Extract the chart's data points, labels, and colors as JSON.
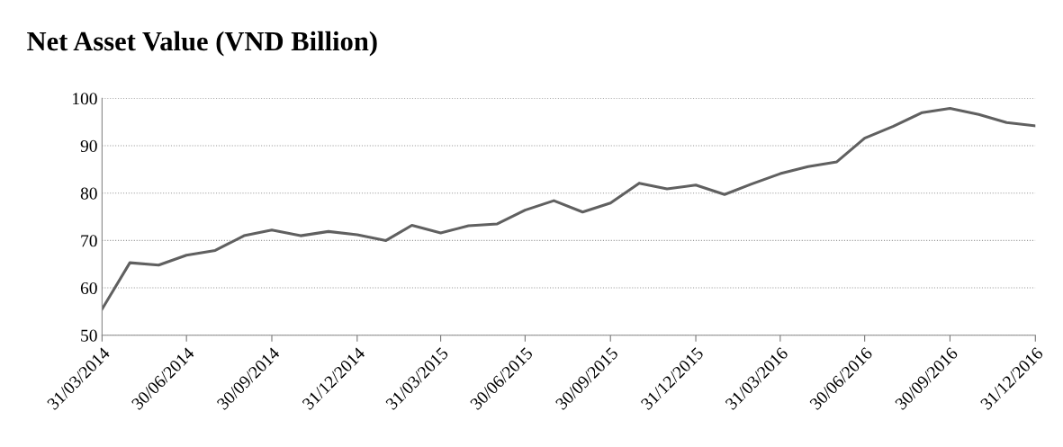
{
  "chart_data": {
    "type": "line",
    "title": "Net Asset Value (VND Billion)",
    "x": [
      "2014-03-31",
      "2014-04-30",
      "2014-05-31",
      "2014-06-30",
      "2014-07-31",
      "2014-08-31",
      "2014-09-30",
      "2014-10-31",
      "2014-11-30",
      "2014-12-31",
      "2015-01-31",
      "2015-02-28",
      "2015-03-31",
      "2015-04-30",
      "2015-05-31",
      "2015-06-30",
      "2015-07-31",
      "2015-08-31",
      "2015-09-30",
      "2015-10-31",
      "2015-11-30",
      "2015-12-31",
      "2016-01-31",
      "2016-02-29",
      "2016-03-31",
      "2016-04-30",
      "2016-05-31",
      "2016-06-30",
      "2016-07-31",
      "2016-08-31",
      "2016-09-30",
      "2016-10-31",
      "2016-11-30",
      "2016-12-31"
    ],
    "series": [
      {
        "color": "#606060",
        "values": [
          55.5,
          65.3,
          64.8,
          66.9,
          67.9,
          71.0,
          72.2,
          71.0,
          71.9,
          71.2,
          70.0,
          73.2,
          71.6,
          73.1,
          73.5,
          76.4,
          78.4,
          76.0,
          77.9,
          82.1,
          80.9,
          81.7,
          79.7,
          81.9,
          84.1,
          85.6,
          86.6,
          91.6,
          94.1,
          97.0,
          97.9,
          96.6,
          94.9,
          94.2
        ]
      }
    ],
    "xlim": [
      "2014-03-31",
      "2016-12-31"
    ],
    "xticks": [
      {
        "value": "2014-03-31",
        "label": "31/03/2014"
      },
      {
        "value": "2014-06-30",
        "label": "30/06/2014"
      },
      {
        "value": "2014-09-30",
        "label": "30/09/2014"
      },
      {
        "value": "2014-12-31",
        "label": "31/12/2014"
      },
      {
        "value": "2015-03-31",
        "label": "31/03/2015"
      },
      {
        "value": "2015-06-30",
        "label": "30/06/2015"
      },
      {
        "value": "2015-09-30",
        "label": "30/09/2015"
      },
      {
        "value": "2015-12-31",
        "label": "31/12/2015"
      },
      {
        "value": "2016-03-31",
        "label": "31/03/2016"
      },
      {
        "value": "2016-06-30",
        "label": "30/06/2016"
      },
      {
        "value": "2016-09-30",
        "label": "30/09/2016"
      },
      {
        "value": "2016-12-31",
        "label": "31/12/2016"
      }
    ],
    "ylim": [
      50,
      100
    ],
    "yticks": [
      50,
      60,
      70,
      80,
      90,
      100
    ],
    "grid": "y",
    "legend": false,
    "marker": "none",
    "line_style": "solid"
  }
}
